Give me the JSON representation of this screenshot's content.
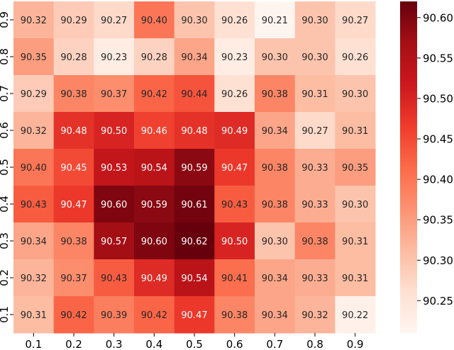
{
  "chart_data": {
    "type": "heatmap",
    "title": "",
    "xlabel": "",
    "ylabel": "",
    "x_labels": [
      "0.1",
      "0.2",
      "0.3",
      "0.4",
      "0.5",
      "0.6",
      "0.7",
      "0.8",
      "0.9"
    ],
    "y_labels": [
      "0.9",
      "0.8",
      "0.7",
      "0.6",
      "0.5",
      "0.4",
      "0.3",
      "0.2",
      "0.1"
    ],
    "values": [
      [
        90.32,
        90.29,
        90.27,
        90.4,
        90.3,
        90.26,
        90.21,
        90.3,
        90.27
      ],
      [
        90.35,
        90.28,
        90.23,
        90.28,
        90.34,
        90.23,
        90.3,
        90.3,
        90.26
      ],
      [
        90.29,
        90.38,
        90.37,
        90.42,
        90.44,
        90.26,
        90.38,
        90.31,
        90.3
      ],
      [
        90.32,
        90.48,
        90.5,
        90.46,
        90.48,
        90.49,
        90.34,
        90.27,
        90.31
      ],
      [
        90.4,
        90.45,
        90.53,
        90.54,
        90.59,
        90.47,
        90.38,
        90.33,
        90.35
      ],
      [
        90.43,
        90.47,
        90.6,
        90.59,
        90.61,
        90.43,
        90.38,
        90.33,
        90.3
      ],
      [
        90.34,
        90.38,
        90.57,
        90.6,
        90.62,
        90.5,
        90.3,
        90.38,
        90.31
      ],
      [
        90.32,
        90.37,
        90.43,
        90.49,
        90.54,
        90.41,
        90.34,
        90.33,
        90.31
      ],
      [
        90.31,
        90.42,
        90.39,
        90.42,
        90.47,
        90.38,
        90.34,
        90.32,
        90.22
      ]
    ],
    "value_labels": [
      [
        "90.32",
        "90.29",
        "90.27",
        "90.40",
        "90.30",
        "90.26",
        "90.21",
        "90.30",
        "90.27"
      ],
      [
        "90.35",
        "90.28",
        "90.23",
        "90.28",
        "90.34",
        "90.23",
        "90.30",
        "90.30",
        "90.26"
      ],
      [
        "90.29",
        "90.38",
        "90.37",
        "90.42",
        "90.44",
        "90.26",
        "90.38",
        "90.31",
        "90.30"
      ],
      [
        "90.32",
        "90.48",
        "90.50",
        "90.46",
        "90.48",
        "90.49",
        "90.34",
        "90.27",
        "90.31"
      ],
      [
        "90.40",
        "90.45",
        "90.53",
        "90.54",
        "90.59",
        "90.47",
        "90.38",
        "90.33",
        "90.35"
      ],
      [
        "90.43",
        "90.47",
        "90.60",
        "90.59",
        "90.61",
        "90.43",
        "90.38",
        "90.33",
        "90.30"
      ],
      [
        "90.34",
        "90.38",
        "90.57",
        "90.60",
        "90.62",
        "90.50",
        "90.30",
        "90.38",
        "90.31"
      ],
      [
        "90.32",
        "90.37",
        "90.43",
        "90.49",
        "90.54",
        "90.41",
        "90.34",
        "90.33",
        "90.31"
      ],
      [
        "90.31",
        "90.42",
        "90.39",
        "90.42",
        "90.47",
        "90.38",
        "90.34",
        "90.32",
        "90.22"
      ]
    ],
    "color_scale": {
      "name": "Reds",
      "vmin": 90.21,
      "vmax": 90.62,
      "colors": [
        "#fff5f0",
        "#fee0d2",
        "#fcbba1",
        "#fc9272",
        "#fb6a4a",
        "#ef3b2c",
        "#cb181d",
        "#a50f15",
        "#67000d"
      ]
    },
    "colorbar_ticks": [
      90.25,
      90.3,
      90.35,
      90.4,
      90.45,
      90.5,
      90.55,
      90.6
    ],
    "colorbar_tick_labels": [
      "90.25",
      "90.30",
      "90.35",
      "90.40",
      "90.45",
      "90.50",
      "90.55",
      "90.60"
    ],
    "legend": "colorbar-right",
    "grid": false
  }
}
